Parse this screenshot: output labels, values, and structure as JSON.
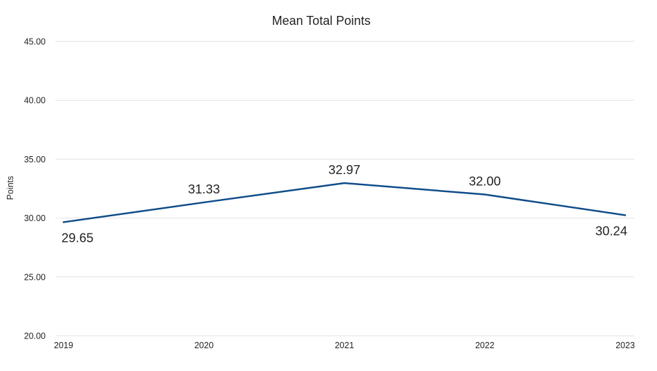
{
  "chart_data": {
    "type": "line",
    "title": "Mean Total Points",
    "xlabel": "",
    "ylabel": "Points",
    "categories": [
      "2019",
      "2020",
      "2021",
      "2022",
      "2023"
    ],
    "series": [
      {
        "values": [
          29.65,
          31.33,
          32.97,
          32.0,
          30.24
        ],
        "data_labels": [
          "29.65",
          "31.33",
          "32.97",
          "32.00",
          "30.24"
        ],
        "label_positions": [
          "below",
          "above",
          "above",
          "above",
          "below"
        ],
        "color": "#0e4c8a"
      }
    ],
    "ylim": [
      20,
      45
    ],
    "yticks": [
      20,
      25,
      30,
      35,
      40,
      45
    ],
    "ytick_labels": [
      "20.00",
      "25.00",
      "30.00",
      "35.00",
      "40.00",
      "45.00"
    ],
    "grid": true,
    "legend": "none"
  }
}
